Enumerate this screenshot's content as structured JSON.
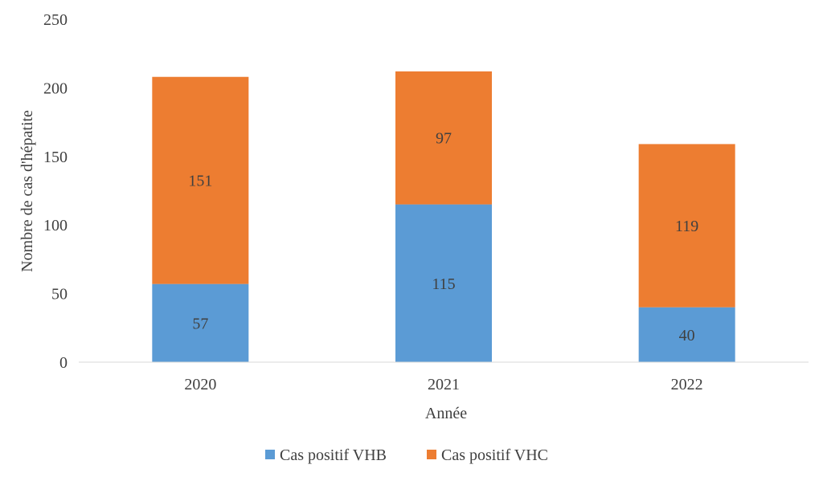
{
  "chart_data": {
    "type": "bar",
    "stacked": true,
    "title": "",
    "xlabel": "Année",
    "ylabel": "Nombre de cas d'hépatite",
    "ylim": [
      0,
      250
    ],
    "yticks": [
      "0",
      "50",
      "100",
      "150",
      "200",
      "250"
    ],
    "categories": [
      "2020",
      "2021",
      "2022"
    ],
    "series": [
      {
        "name": "Cas positif VHB",
        "values": [
          57,
          115,
          40
        ],
        "color": "#5B9BD5"
      },
      {
        "name": "Cas positif VHC",
        "values": [
          151,
          97,
          119
        ],
        "color": "#ED7D31"
      }
    ],
    "grid": false,
    "legend_position": "bottom"
  }
}
